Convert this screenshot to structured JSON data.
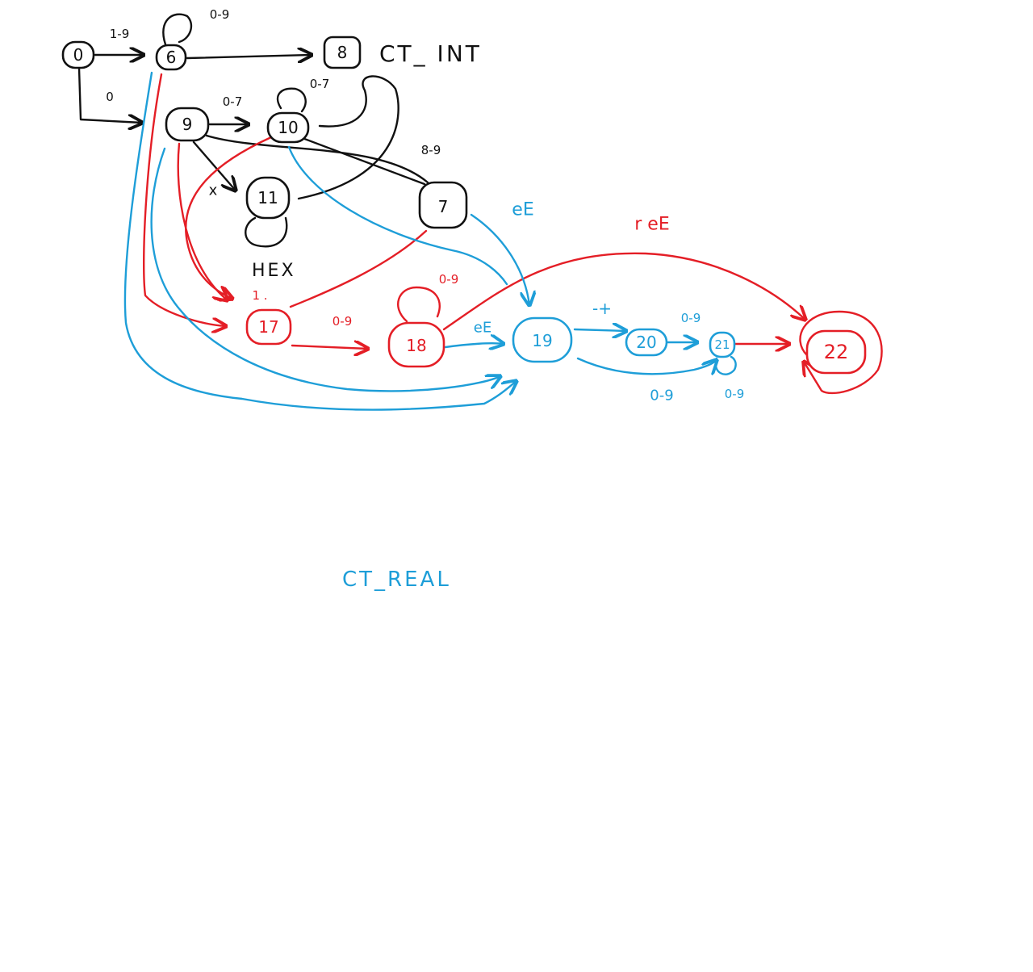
{
  "colors": {
    "black": "#111111",
    "red": "#e41e26",
    "blue": "#1e9ed8"
  },
  "annotations": {
    "ct_int": "CT_ INT",
    "ct_real": "CT_REAL",
    "hex": "HEX"
  },
  "nodes": {
    "n0": "0",
    "n6": "6",
    "n8": "8",
    "n9": "9",
    "n10": "10",
    "n11": "11",
    "n7": "7",
    "n17": "17",
    "n18": "18",
    "n19": "19",
    "n20": "20",
    "n21": "21",
    "n22": "22"
  },
  "edge_labels": {
    "e0_6": "1-9",
    "e6_loop": "0-9",
    "e0_9": "0",
    "e9_10": "0-7",
    "e10_loop": "0-7",
    "e9_11": "x",
    "e10_7": "8-9",
    "e7_19": "eE",
    "e17_dot": "1 .",
    "e17_18": "0-9",
    "e18_loop": "0-9",
    "e18_19": "eE",
    "e18_22": "r eE",
    "e19_20": "-+",
    "e20_21": "0-9",
    "e20_loop": "0-9",
    "e21_loop": "0-9"
  }
}
